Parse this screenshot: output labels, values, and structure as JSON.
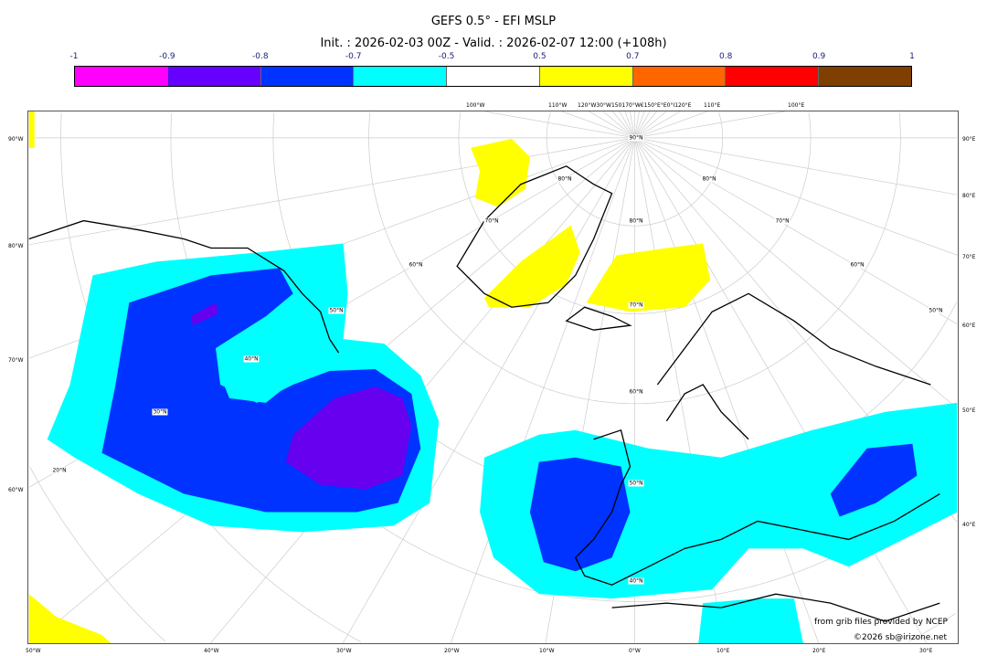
{
  "title": "GEFS 0.5° - EFI MSLP",
  "subtitle": "Init. : 2026-02-03 00Z - Valid. : 2026-02-07 12:00 (+108h)",
  "colorbar": {
    "labels": [
      "-1",
      "-0.9",
      "-0.8",
      "-0.7",
      "-0.5",
      "0.5",
      "0.7",
      "0.8",
      "0.9",
      "1"
    ],
    "colors": [
      "#ff00ff",
      "#6600ff",
      "#0033ff",
      "#00ffff",
      "#ffffff",
      "#ffff00",
      "#ff6600",
      "#ff0000",
      "#7f3f00"
    ]
  },
  "map": {
    "projection": "polar stereographic, North Atlantic / Europe",
    "colors": {
      "cyan": "#00ffff",
      "blue": "#0033ff",
      "violet": "#6600ee",
      "yellow": "#ffff00",
      "coast": "#000000",
      "grid": "#c8c8c8"
    },
    "top_ticks": [
      "100°W",
      "110°W",
      "120°W30°W150170°W€150°E°E0°I120°E",
      "110°E",
      "100°E"
    ],
    "left_ticks": [
      "90°W",
      "80°W",
      "70°W",
      "60°W"
    ],
    "right_ticks": [
      "90°E",
      "80°E",
      "70°E",
      "60°E",
      "50°E",
      "40°E"
    ],
    "bottom_ticks": [
      "50°W",
      "40°W",
      "30°W",
      "20°W",
      "10°W",
      "0°W",
      "10°E",
      "20°E",
      "30°E"
    ],
    "lat_labels": [
      "90°N",
      "80°N",
      "70°N",
      "60°N",
      "50°N",
      "40°N",
      "30°N",
      "20°N",
      "80°N",
      "70°N",
      "60°N",
      "50°N",
      "40°N",
      "80°N",
      "70°N",
      "60°N",
      "50°N"
    ]
  },
  "credits": {
    "source": "from grib files provided by NCEP",
    "copyright": "©2026 sb@irizone.net"
  }
}
